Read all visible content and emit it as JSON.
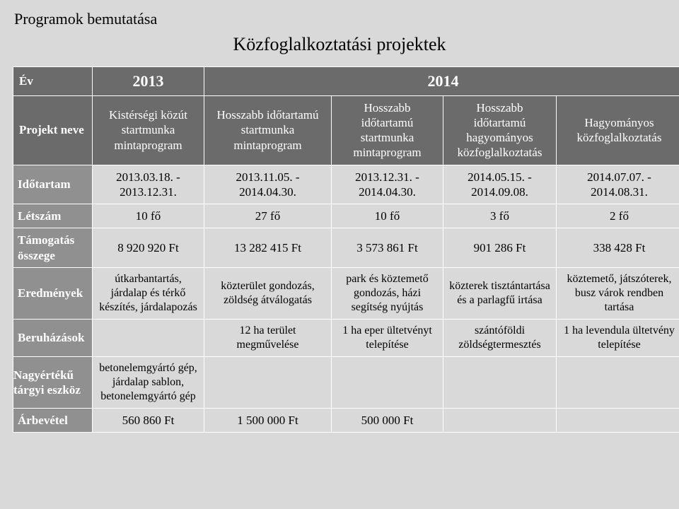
{
  "page_title": "Programok bemutatása",
  "subtitle": "Közfoglalkoztatási projektek",
  "headers": {
    "year_label": "Év",
    "year_2013": "2013",
    "year_2014": "2014",
    "project_name_label": "Projekt neve"
  },
  "projects": {
    "p1": "Kistérségi közút startmunka mintaprogram",
    "p2": "Hosszabb időtartamú startmunka mintaprogram",
    "p3": "Hosszabb időtartamú startmunka mintaprogram",
    "p4": "Hosszabb időtartamú hagyományos közfoglalkoztatás",
    "p5": "Hagyományos közfoglalkoztatás"
  },
  "rows": {
    "idotartam_label": "Időtartam",
    "idotartam": {
      "c1": "2013.03.18. - 2013.12.31.",
      "c2": "2013.11.05. - 2014.04.30.",
      "c3": "2013.12.31. - 2014.04.30.",
      "c4": "2014.05.15. - 2014.09.08.",
      "c5": "2014.07.07. - 2014.08.31."
    },
    "letszam_label": "Létszám",
    "letszam": {
      "c1": "10 fő",
      "c2": "27 fő",
      "c3": "10 fő",
      "c4": "3 fő",
      "c5": "2 fő"
    },
    "tamogatas_label": "Támogatás összege",
    "tamogatas": {
      "c1": "8 920 920 Ft",
      "c2": "13 282 415 Ft",
      "c3": "3 573 861 Ft",
      "c4": "901 286 Ft",
      "c5": "338 428 Ft"
    },
    "eredmenyek_label": "Eredmények",
    "eredmenyek": {
      "c1": "útkarbantartás, járdalap és térkő készítés, járdalapozás",
      "c2": "közterület gondozás, zöldség átválogatás",
      "c3": "park és köztemető gondozás, házi segítség nyújtás",
      "c4": "közterek tisztántartása és a parlagfű irtása",
      "c5": "köztemető, játszóterek, busz várok rendben tartása"
    },
    "beruhazasok_label": "Beruházások",
    "beruhazasok": {
      "c1": "",
      "c2": "12 ha terület megművelése",
      "c3": "1 ha eper ültetvényt telepítése",
      "c4": "szántóföldi zöldségtermesztés",
      "c5": "1 ha levendula ültetvény telepítése"
    },
    "eszkoz_label": "Nagyértékű tárgyi eszköz",
    "eszkoz": {
      "c1": "betonelemgyártó gép, járdalap sablon, betonelemgyártó gép",
      "c2": "",
      "c3": "",
      "c4": "",
      "c5": ""
    },
    "arbevetel_label": "Árbevétel",
    "arbevetel": {
      "c1": "560 860 Ft",
      "c2": "1 500 000 Ft",
      "c3": "500 000 Ft",
      "c4": "",
      "c5": ""
    }
  },
  "style": {
    "page_bg": "#d9d9d9",
    "header_bg": "#6b6b6b",
    "rowhead_bg": "#909090",
    "border_color": "#ffffff",
    "body_font_size": 17,
    "title_font_size": 22,
    "subtitle_font_size": 26
  }
}
